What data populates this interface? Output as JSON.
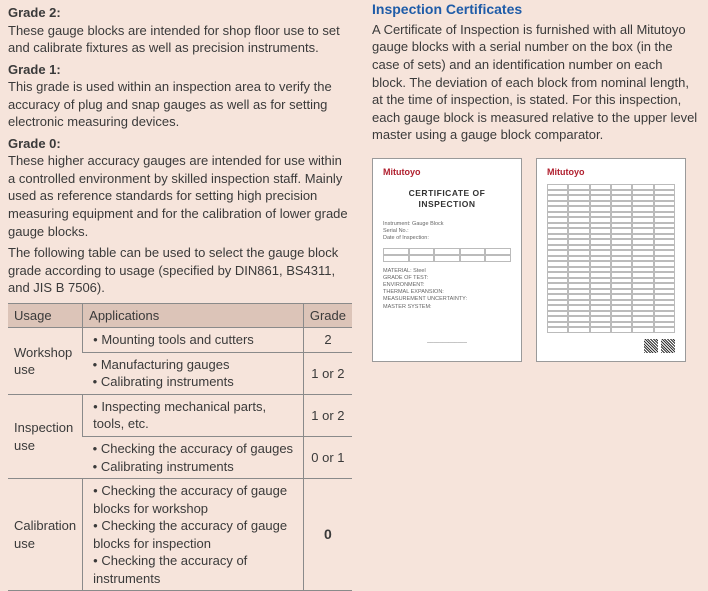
{
  "left": {
    "grade2_label": "Grade 2:",
    "grade2_desc": "These gauge blocks are intended for shop floor use to set and calibrate fixtures as well as precision instruments.",
    "grade1_label": "Grade 1:",
    "grade1_desc": "This grade is used within an inspection area to verify the accuracy of plug and snap gauges as well as for setting electronic measuring devices.",
    "grade0_label": "Grade 0:",
    "grade0_desc": "These higher accuracy gauges are intended for use within a controlled environment by skilled inspection staff. Mainly used as reference standards for setting high precision measuring equipment and for the calibration of lower grade gauge blocks.",
    "table_intro": "The following table can be used to select the gauge block grade according to usage (specified by DIN861, BS4311, and JIS B 7506).",
    "headers": {
      "usage": "Usage",
      "apps": "Applications",
      "grade": "Grade"
    },
    "rows": {
      "workshop_label": "Workshop use",
      "workshop_r1_apps": "• Mounting tools and cutters",
      "workshop_r1_grade": "2",
      "workshop_r2_apps": "• Manufacturing gauges\n• Calibrating instruments",
      "workshop_r2_grade": "1 or 2",
      "inspection_label": "Inspection use",
      "inspection_r1_apps": "• Inspecting mechanical parts, tools, etc.",
      "inspection_r1_grade": "1 or 2",
      "inspection_r2_apps": "• Checking the accuracy of gauges\n• Calibrating instruments",
      "inspection_r2_grade": "0 or 1",
      "calibration_label": "Calibration use",
      "calibration_apps": "• Checking the accuracy of gauge blocks for workshop\n• Checking the accuracy of gauge blocks for inspection\n• Checking the accuracy of instruments",
      "calibration_grade": "0"
    }
  },
  "right": {
    "heading": "Inspection Certificates",
    "body": "A Certificate of Inspection is furnished with all Mitutoyo gauge blocks with a serial number on the box (in the case of sets) and an identification number on each block. The deviation of each block from nominal length, at the time of inspection, is stated. For this inspection, each gauge block is measured relative to the upper level master using a gauge block comparator.",
    "cert_logo": "Mitutoyo",
    "cert_title": "CERTIFICATE OF INSPECTION"
  },
  "colors": {
    "background": "#f6e4db",
    "heading": "#1f5ca8",
    "table_header_bg": "#dcc4b8",
    "border": "#8a8a8a",
    "logo_red": "#b01f2e"
  }
}
